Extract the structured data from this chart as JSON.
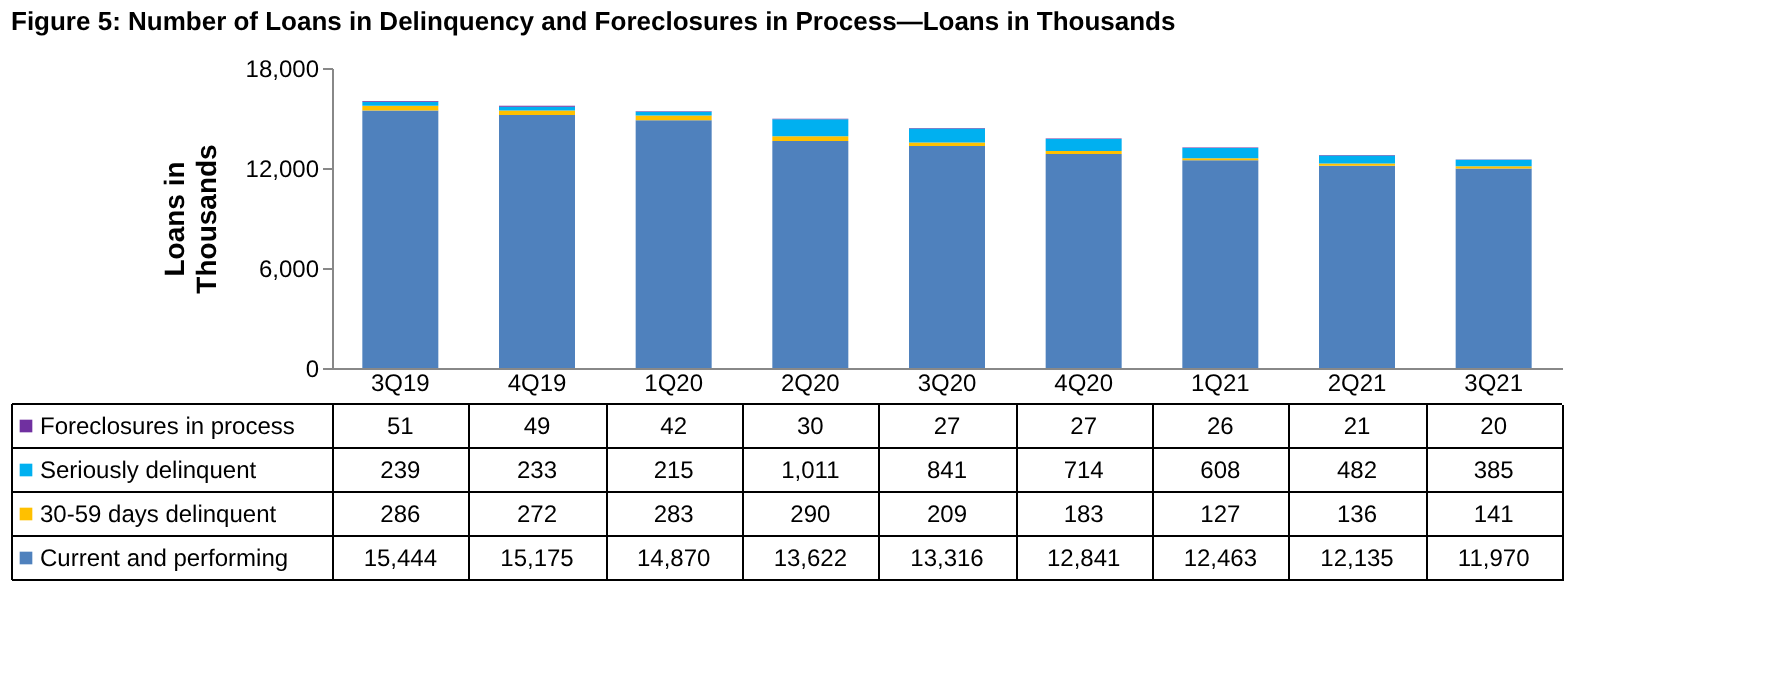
{
  "chart_data": {
    "type": "bar",
    "title": "Figure 5: Number of Loans in Delinquency and Foreclosures in Process—Loans in Thousands",
    "ylabel": "Loans in Thousands",
    "categories": [
      "3Q19",
      "4Q19",
      "1Q20",
      "2Q20",
      "3Q20",
      "4Q20",
      "1Q21",
      "2Q21",
      "3Q21"
    ],
    "stacked": true,
    "ylim": [
      0,
      18000
    ],
    "yticks": [
      0,
      {
        "value": 6000,
        "label": "6,000"
      },
      {
        "value": 12000,
        "label": "12,000"
      },
      {
        "value": 18000,
        "label": "18,000"
      }
    ],
    "grid": false,
    "legend": "bottom",
    "series": [
      {
        "name": "Current and performing",
        "color": "#4f81bd",
        "values": [
          15444,
          15175,
          14870,
          13622,
          13316,
          12841,
          12463,
          12135,
          11970
        ],
        "value_labels": [
          "15,444",
          "15,175",
          "14,870",
          "13,622",
          "13,316",
          "12,841",
          "12,463",
          "12,135",
          "11,970"
        ]
      },
      {
        "name": "30-59 days delinquent",
        "color": "#ffc000",
        "values": [
          286,
          272,
          283,
          290,
          209,
          183,
          127,
          136,
          141
        ],
        "value_labels": [
          "286",
          "272",
          "283",
          "290",
          "209",
          "183",
          "127",
          "136",
          "141"
        ]
      },
      {
        "name": "Seriously delinquent",
        "color": "#00b0f0",
        "values": [
          239,
          233,
          215,
          1011,
          841,
          714,
          608,
          482,
          385
        ],
        "value_labels": [
          "239",
          "233",
          "215",
          "1,011",
          "841",
          "714",
          "608",
          "482",
          "385"
        ]
      },
      {
        "name": "Foreclosures in process",
        "color": "#7030a0",
        "values": [
          51,
          49,
          42,
          30,
          27,
          27,
          26,
          21,
          20
        ],
        "value_labels": [
          "51",
          "49",
          "42",
          "30",
          "27",
          "27",
          "26",
          "21",
          "20"
        ]
      }
    ]
  }
}
